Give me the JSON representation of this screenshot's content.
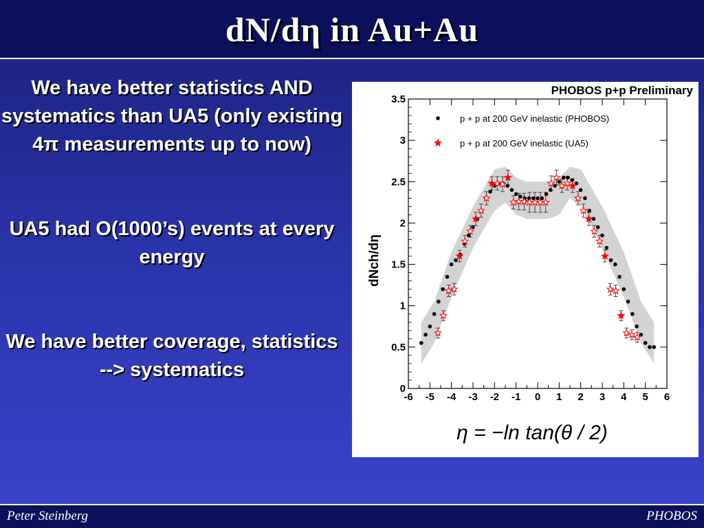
{
  "slide": {
    "title": "dN/dη in Au+Au",
    "bullets": [
      "We have better statistics AND systematics than UA5 (only existing 4π measurements up to now)",
      "UA5 had O(1000’s) events at every energy",
      "We have better coverage, statistics --> systematics"
    ],
    "footer_left": "Peter Steinberg",
    "footer_right": "PHOBOS"
  },
  "figure": {
    "banner": "PHOBOS p+p Preliminary",
    "formula": "η = −ln tan(θ / 2)"
  },
  "chart_data": {
    "type": "scatter",
    "ylabel": "dNch/dη",
    "xlim": [
      -6,
      6
    ],
    "ylim": [
      0,
      3.5
    ],
    "xticks": [
      "-6",
      "-5",
      "-4",
      "-3",
      "-2",
      "-1",
      "0",
      "1",
      "2",
      "3",
      "4",
      "5",
      "6"
    ],
    "yticks": [
      "0",
      "0.5",
      "1",
      "1.5",
      "2",
      "2.5",
      "3",
      "3.5"
    ],
    "series": [
      {
        "name": "p + p at 200 GeV inelastic (PHOBOS)",
        "color": "#000000",
        "marker": "dot",
        "x": [
          -5.4,
          -5.2,
          -5.0,
          -4.8,
          -4.6,
          -4.4,
          -4.2,
          -4.0,
          -3.8,
          -3.6,
          -3.4,
          -3.2,
          -3.0,
          -2.8,
          -2.6,
          -2.4,
          -2.2,
          -2.0,
          -1.8,
          -1.6,
          -1.4,
          -1.2,
          -1.0,
          -0.8,
          -0.6,
          -0.4,
          -0.2,
          0.0,
          0.2,
          0.4,
          0.6,
          0.8,
          1.0,
          1.2,
          1.4,
          1.6,
          1.8,
          2.0,
          2.2,
          2.4,
          2.6,
          2.8,
          3.0,
          3.2,
          3.4,
          3.6,
          3.8,
          4.0,
          4.2,
          4.4,
          4.6,
          4.8,
          5.0,
          5.2,
          5.4
        ],
        "y": [
          0.55,
          0.65,
          0.75,
          0.9,
          1.05,
          1.2,
          1.35,
          1.5,
          1.55,
          1.62,
          1.75,
          1.85,
          1.95,
          2.05,
          2.15,
          2.3,
          2.38,
          2.45,
          2.48,
          2.48,
          2.45,
          2.4,
          2.35,
          2.32,
          2.3,
          2.3,
          2.3,
          2.3,
          2.3,
          2.35,
          2.4,
          2.45,
          2.5,
          2.55,
          2.55,
          2.52,
          2.48,
          2.4,
          2.3,
          2.15,
          2.05,
          1.95,
          1.85,
          1.7,
          1.55,
          1.5,
          1.35,
          1.2,
          1.05,
          0.9,
          0.75,
          0.65,
          0.55,
          0.5,
          0.5
        ]
      },
      {
        "name": "p + p at 200 GeV inelastic (UA5)",
        "color": "#ff0000",
        "marker": "star",
        "x": [
          -4.625,
          -4.375,
          -4.125,
          -3.875,
          -3.625,
          -3.375,
          -3.125,
          -2.875,
          -2.625,
          -2.375,
          -2.125,
          -1.875,
          -1.625,
          -1.375,
          -1.125,
          -0.875,
          -0.625,
          -0.375,
          -0.125,
          0.125,
          0.375,
          0.625,
          0.875,
          1.125,
          1.375,
          1.625,
          1.875,
          2.125,
          2.375,
          2.625,
          2.875,
          3.125,
          3.375,
          3.625,
          3.875,
          4.125,
          4.375,
          4.625
        ],
        "y": [
          0.67,
          0.88,
          1.18,
          1.2,
          1.6,
          1.78,
          1.9,
          2.05,
          2.15,
          2.3,
          2.48,
          2.48,
          2.47,
          2.55,
          2.25,
          2.26,
          2.26,
          2.25,
          2.25,
          2.25,
          2.25,
          2.48,
          2.55,
          2.45,
          2.48,
          2.45,
          2.3,
          2.15,
          2.05,
          1.9,
          1.78,
          1.6,
          1.2,
          1.18,
          0.88,
          0.67,
          0.65,
          0.62
        ],
        "err": [
          0.06,
          0.06,
          0.07,
          0.07,
          0.07,
          0.07,
          0.07,
          0.08,
          0.08,
          0.08,
          0.08,
          0.08,
          0.09,
          0.09,
          0.08,
          0.1,
          0.1,
          0.12,
          0.12,
          0.12,
          0.12,
          0.09,
          0.09,
          0.08,
          0.08,
          0.08,
          0.08,
          0.08,
          0.08,
          0.07,
          0.07,
          0.07,
          0.07,
          0.07,
          0.06,
          0.06,
          0.06,
          0.06
        ]
      }
    ],
    "band": {
      "color": "#d3d3d3",
      "x": [
        -5.4,
        -4.8,
        -4.0,
        -3.0,
        -2.0,
        -1.5,
        -1.0,
        -0.5,
        0.0,
        0.5,
        1.0,
        1.5,
        2.0,
        3.0,
        4.0,
        4.8,
        5.4
      ],
      "lower": [
        0.3,
        0.55,
        1.1,
        1.7,
        2.15,
        2.25,
        2.1,
        2.05,
        2.05,
        2.05,
        2.1,
        2.3,
        2.2,
        1.7,
        1.1,
        0.55,
        0.3
      ],
      "upper": [
        0.8,
        1.05,
        1.65,
        2.2,
        2.65,
        2.68,
        2.55,
        2.5,
        2.5,
        2.5,
        2.55,
        2.68,
        2.65,
        2.2,
        1.65,
        1.05,
        0.8
      ]
    }
  }
}
